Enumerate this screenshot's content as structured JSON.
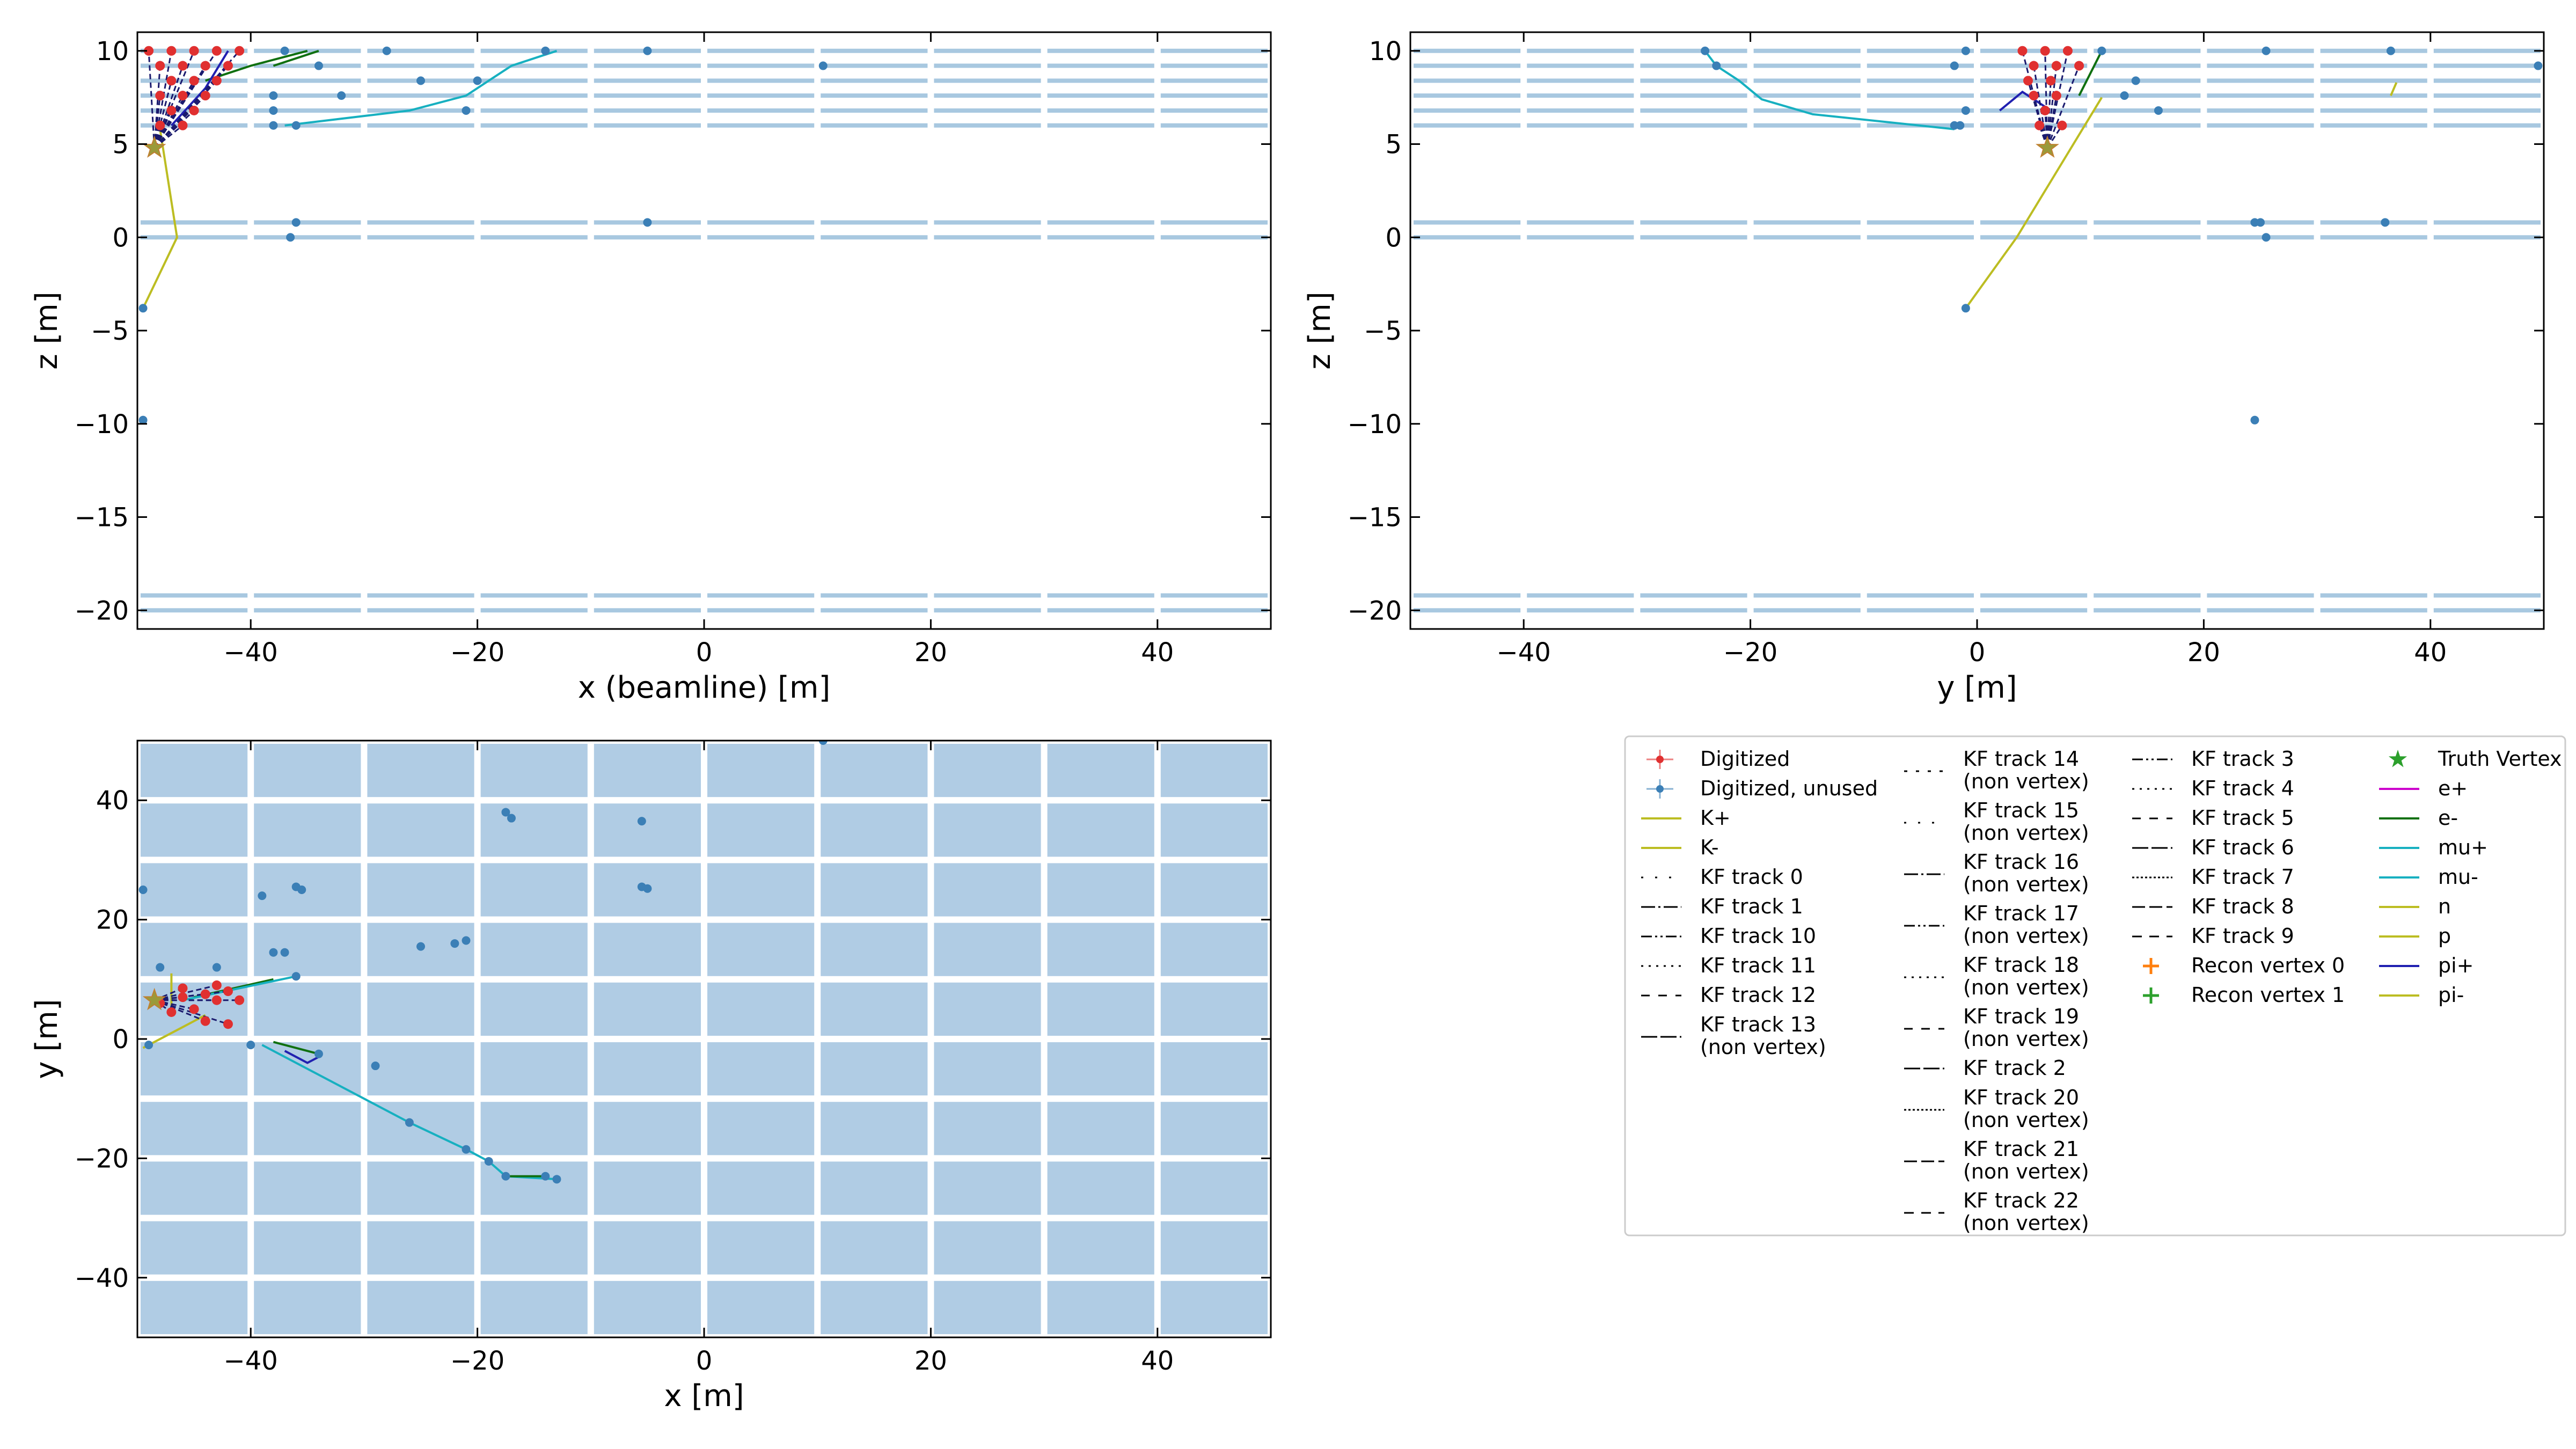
{
  "chart_data": [
    {
      "type": "scatter",
      "panel": "xz",
      "xlabel": "x (beamline) [m]",
      "ylabel": "z [m]",
      "xlim": [
        -50,
        50
      ],
      "ylim": [
        -21,
        11
      ],
      "xticks": [
        -40,
        -20,
        0,
        20,
        40
      ],
      "yticks": [
        10,
        5,
        0,
        -5,
        -10,
        -15,
        -20
      ],
      "detector_layers_z": [
        10,
        9.2,
        8.4,
        7.6,
        6.8,
        6.0,
        0.8,
        0,
        -19.2,
        -20
      ],
      "unused_hits": [
        [
          -37,
          10
        ],
        [
          -28,
          10
        ],
        [
          -14,
          10
        ],
        [
          -5,
          10
        ],
        [
          10.5,
          9.2
        ],
        [
          -34,
          9.2
        ],
        [
          -20,
          8.4
        ],
        [
          -25,
          8.4
        ],
        [
          -38,
          7.6
        ],
        [
          -32,
          7.6
        ],
        [
          -21,
          6.8
        ],
        [
          -38,
          6.8
        ],
        [
          -36,
          6.0
        ],
        [
          -38,
          6.0
        ],
        [
          -36,
          0.8
        ],
        [
          -5,
          0.8
        ],
        [
          -36.5,
          0
        ],
        [
          -49.5,
          -3.8
        ],
        [
          -49.5,
          -9.8
        ]
      ],
      "digitized_hits": [
        [
          -49,
          10
        ],
        [
          -47,
          10
        ],
        [
          -45,
          10
        ],
        [
          -43,
          10
        ],
        [
          -41,
          10
        ],
        [
          -48,
          9.2
        ],
        [
          -46,
          9.2
        ],
        [
          -44,
          9.2
        ],
        [
          -42,
          9.2
        ],
        [
          -47,
          8.4
        ],
        [
          -45,
          8.4
        ],
        [
          -43,
          8.4
        ],
        [
          -48,
          7.6
        ],
        [
          -46,
          7.6
        ],
        [
          -44,
          7.6
        ],
        [
          -47,
          6.8
        ],
        [
          -45,
          6.8
        ],
        [
          -48,
          6.0
        ],
        [
          -46,
          6.0
        ]
      ],
      "tracks": [
        {
          "particle": "mu+",
          "points": [
            [
              -37,
              6.0
            ],
            [
              -26,
              6.8
            ],
            [
              -21,
              7.6
            ],
            [
              -19,
              8.4
            ],
            [
              -17,
              9.2
            ],
            [
              -13,
              10
            ]
          ]
        },
        {
          "particle": "e-",
          "points": [
            [
              -44,
              8.4
            ],
            [
              -40,
              9.2
            ],
            [
              -35,
              10
            ]
          ]
        },
        {
          "particle": "e-",
          "points": [
            [
              -38,
              9.2
            ],
            [
              -34,
              10
            ]
          ]
        },
        {
          "particle": "K+",
          "points": [
            [
              -48,
              5.8
            ],
            [
              -46.5,
              0
            ],
            [
              -49.5,
              -3.8
            ]
          ]
        },
        {
          "particle": "pi+",
          "points": [
            [
              -47,
              6.0
            ],
            [
              -44,
              8.0
            ],
            [
              -42,
              10
            ]
          ]
        }
      ],
      "truth_vertex": [
        -48.5,
        4.8
      ]
    },
    {
      "type": "scatter",
      "panel": "yz",
      "xlabel": "y [m]",
      "ylabel": "z [m]",
      "xlim": [
        -50,
        50
      ],
      "ylim": [
        -21,
        11
      ],
      "xticks": [
        -40,
        -20,
        0,
        20,
        40
      ],
      "yticks": [
        10,
        5,
        0,
        -5,
        -10,
        -15,
        -20
      ],
      "detector_layers_z": [
        10,
        9.2,
        8.4,
        7.6,
        6.8,
        6.0,
        0.8,
        0,
        -19.2,
        -20
      ],
      "unused_hits": [
        [
          -24,
          10
        ],
        [
          -23,
          9.2
        ],
        [
          -1,
          10
        ],
        [
          -2,
          9.2
        ],
        [
          11,
          10
        ],
        [
          25.5,
          10
        ],
        [
          36.5,
          10
        ],
        [
          49.5,
          9.2
        ],
        [
          14,
          8.4
        ],
        [
          13,
          7.6
        ],
        [
          16,
          6.8
        ],
        [
          -1,
          6.8
        ],
        [
          -1.5,
          6.0
        ],
        [
          -2,
          6.0
        ],
        [
          24.5,
          0.8
        ],
        [
          25,
          0.8
        ],
        [
          36,
          0.8
        ],
        [
          25.5,
          0
        ],
        [
          -1,
          -3.8
        ],
        [
          24.5,
          -9.8
        ]
      ],
      "digitized_hits": [
        [
          4,
          10
        ],
        [
          6,
          10
        ],
        [
          8,
          10
        ],
        [
          5,
          9.2
        ],
        [
          7,
          9.2
        ],
        [
          9,
          9.2
        ],
        [
          4.5,
          8.4
        ],
        [
          6.5,
          8.4
        ],
        [
          5,
          7.6
        ],
        [
          7,
          7.6
        ],
        [
          6,
          6.8
        ],
        [
          5.5,
          6.0
        ],
        [
          7.5,
          6.0
        ]
      ],
      "tracks": [
        {
          "particle": "mu+",
          "points": [
            [
              -2,
              5.8
            ],
            [
              -14.5,
              6.6
            ],
            [
              -19,
              7.4
            ],
            [
              -21,
              8.4
            ],
            [
              -23,
              9.2
            ],
            [
              -24,
              10
            ]
          ]
        },
        {
          "particle": "K+",
          "points": [
            [
              11,
              7.5
            ],
            [
              3.5,
              0
            ],
            [
              -1,
              -3.8
            ]
          ]
        },
        {
          "particle": "pi+",
          "points": [
            [
              2,
              6.8
            ],
            [
              4,
              7.8
            ],
            [
              6,
              7.0
            ]
          ]
        },
        {
          "particle": "e-",
          "points": [
            [
              9,
              7.6
            ],
            [
              11,
              10
            ]
          ]
        },
        {
          "particle": "K+",
          "points": [
            [
              36.5,
              7.6
            ],
            [
              37,
              8.3
            ]
          ]
        }
      ],
      "truth_vertex": [
        6.2,
        4.8
      ]
    },
    {
      "type": "scatter",
      "panel": "xy",
      "xlabel": "x [m]",
      "ylabel": "y [m]",
      "xlim": [
        -50,
        50
      ],
      "ylim": [
        -50,
        50
      ],
      "xticks": [
        -40,
        -20,
        0,
        20,
        40
      ],
      "yticks": [
        40,
        20,
        0,
        -20,
        -40
      ],
      "module_edges_x": [
        -50,
        -40,
        -30,
        -20,
        -10,
        0,
        10,
        20,
        30,
        40,
        50
      ],
      "module_edges_y": [
        -50,
        -40,
        -30,
        -20,
        -10,
        0,
        10,
        20,
        30,
        40,
        50
      ],
      "unused_hits": [
        [
          -49.5,
          25
        ],
        [
          -39,
          24
        ],
        [
          -36,
          25.5
        ],
        [
          -35.5,
          25
        ],
        [
          -17.5,
          38
        ],
        [
          -17,
          37
        ],
        [
          -5.5,
          36.5
        ],
        [
          -5.5,
          25.5
        ],
        [
          -5,
          25.2
        ],
        [
          10.5,
          50
        ],
        [
          -25,
          15.5
        ],
        [
          -22,
          16
        ],
        [
          -21,
          16.5
        ],
        [
          -38,
          14.5
        ],
        [
          -37,
          14.5
        ],
        [
          -36,
          10.5
        ],
        [
          -40,
          -1
        ],
        [
          -34,
          -2.5
        ],
        [
          -29,
          -4.5
        ],
        [
          -26,
          -14
        ],
        [
          -21,
          -18.5
        ],
        [
          -19,
          -20.5
        ],
        [
          -17.5,
          -23
        ],
        [
          -14,
          -23
        ],
        [
          -13,
          -23.5
        ],
        [
          -49,
          -1
        ],
        [
          -48,
          12
        ],
        [
          -43,
          12
        ]
      ],
      "digitized_hits": [
        [
          -48,
          6
        ],
        [
          -46,
          7
        ],
        [
          -44,
          7.5
        ],
        [
          -43,
          6.5
        ],
        [
          -42,
          8
        ],
        [
          -41,
          6.5
        ],
        [
          -45,
          5
        ],
        [
          -47,
          4.5
        ],
        [
          -44,
          3
        ],
        [
          -42,
          2.5
        ],
        [
          -46,
          8.5
        ],
        [
          -43,
          9
        ]
      ],
      "tracks": [
        {
          "particle": "mu+",
          "points": [
            [
              -39,
              -1
            ],
            [
              -26,
              -14
            ],
            [
              -21,
              -18.5
            ],
            [
              -19,
              -20.5
            ],
            [
              -17.5,
              -23
            ],
            [
              -13,
              -23.5
            ]
          ]
        },
        {
          "particle": "e-",
          "points": [
            [
              -38,
              -0.5
            ],
            [
              -34,
              -2.5
            ]
          ]
        },
        {
          "particle": "e-",
          "points": [
            [
              -45,
              7
            ],
            [
              -38,
              10
            ]
          ]
        },
        {
          "particle": "e-",
          "points": [
            [
              -17.5,
              -23
            ],
            [
              -14,
              -23
            ]
          ]
        },
        {
          "particle": "K+",
          "points": [
            [
              -49.5,
              -1.5
            ],
            [
              -46,
              2
            ],
            [
              -44,
              4
            ]
          ]
        },
        {
          "particle": "K+",
          "points": [
            [
              -47,
              11
            ],
            [
              -47,
              5
            ]
          ]
        },
        {
          "particle": "pi+",
          "points": [
            [
              -37,
              -2
            ],
            [
              -35,
              -4
            ],
            [
              -34,
              -3
            ]
          ]
        },
        {
          "particle": "mu+",
          "points": [
            [
              -46,
              6.5
            ],
            [
              -36,
              10.5
            ]
          ]
        }
      ],
      "truth_vertex": [
        -48.5,
        6.5
      ]
    }
  ],
  "legend": {
    "columns": [
      [
        "Digitized",
        "Digitized, unused",
        "K+",
        "K-",
        "KF track 0",
        "KF track 1",
        "KF track 10",
        "KF track 11",
        "KF track 12",
        "KF track 13\n (non vertex)"
      ],
      [
        "KF track 14\n (non vertex)",
        "KF track 15\n (non vertex)",
        "KF track 16\n (non vertex)",
        "KF track 17\n (non vertex)",
        "KF track 18\n (non vertex)",
        "KF track 19\n (non vertex)",
        "KF track 2",
        "KF track 20\n (non vertex)",
        "KF track 21\n (non vertex)",
        "KF track 22\n (non vertex)"
      ],
      [
        "KF track 3",
        "KF track 4",
        "KF track 5",
        "KF track 6",
        "KF track 7",
        "KF track 8",
        "KF track 9",
        "Recon vertex 0",
        "Recon vertex 1"
      ],
      [
        "Truth Vertex",
        "e+",
        "e-",
        "mu+",
        "mu-",
        "n",
        "p",
        "pi+",
        "pi-"
      ]
    ]
  },
  "colors": {
    "layer": "#a8c8e0",
    "module": "#b0cce4",
    "unused_hit": "#3b7fb6",
    "digitized_hit": "#e03030",
    "K+": "#bcbd22",
    "K-": "#bcbd22",
    "e+": "#cc00cc",
    "e-": "#107010",
    "mu+": "#17b0c0",
    "mu-": "#17b0c0",
    "n": "#bcbd22",
    "p": "#bcbd22",
    "pi+": "#2020b0",
    "pi-": "#bcbd22",
    "truth_vertex": "#2ca02c",
    "recon_vertex_0": "#ff7f0e",
    "recon_vertex_1": "#2ca02c"
  }
}
